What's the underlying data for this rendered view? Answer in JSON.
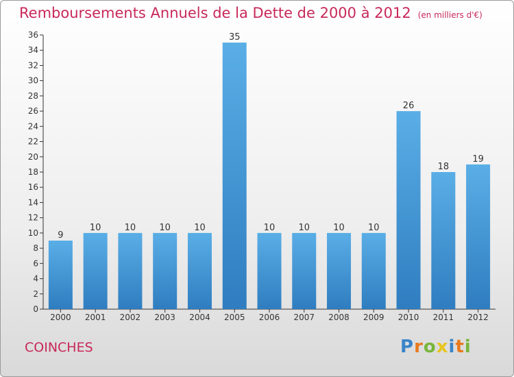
{
  "chart_data": {
    "type": "bar",
    "title": "Remboursements Annuels de la Dette de 2000 à 2012",
    "subtitle": "(en milliers d'€)",
    "categories": [
      "2000",
      "2001",
      "2002",
      "2003",
      "2004",
      "2005",
      "2006",
      "2007",
      "2008",
      "2009",
      "2010",
      "2011",
      "2012"
    ],
    "values": [
      9,
      10,
      10,
      10,
      10,
      35,
      10,
      10,
      10,
      10,
      26,
      18,
      19
    ],
    "xlabel": "",
    "ylabel": "",
    "ylim": [
      0,
      36
    ],
    "ytick_step": 2,
    "grid": false,
    "bar_color": "#4da3dd"
  },
  "commune": "COINCHES",
  "logo": {
    "letters": [
      "P",
      "r",
      "o",
      "x",
      "i",
      "t",
      "i"
    ],
    "colors": [
      "#3a84c9",
      "#e87a1e",
      "#78b53a",
      "#e8c51e",
      "#3a84c9",
      "#e87a1e",
      "#78b53a"
    ]
  }
}
